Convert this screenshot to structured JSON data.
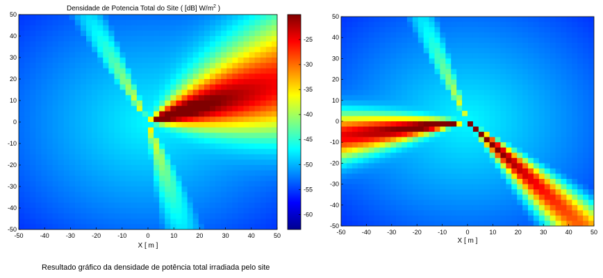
{
  "caption": "Resultado gráfico da densidade de potência total irradiada pelo site",
  "colormap": [
    "#00008f",
    "#0000ff",
    "#0080ff",
    "#00ffff",
    "#80ff80",
    "#ffff00",
    "#ff8000",
    "#ff0000",
    "#800000"
  ],
  "chart_data": [
    {
      "type": "heatmap",
      "title": "Densidade de Potencia Total do Site ( [dB] W/m",
      "title_sup": "2",
      "title_end": " )",
      "xlabel": "X [ m ]",
      "ylabel": "",
      "xlim": [
        -50,
        50
      ],
      "ylim": [
        -50,
        50
      ],
      "xticks": [
        "-50",
        "-40",
        "-30",
        "-20",
        "-10",
        "0",
        "10",
        "20",
        "30",
        "40",
        "50"
      ],
      "yticks": [
        "50",
        "40",
        "30",
        "20",
        "10",
        "0",
        "-10",
        "-20",
        "-30",
        "-40",
        "-50"
      ],
      "colorbar": {
        "ticks": [
          "-25",
          "-30",
          "-35",
          "-40",
          "-45",
          "-50",
          "-55",
          "-60"
        ],
        "range": [
          -63,
          -20
        ]
      },
      "source": {
        "x": 0,
        "y": 0
      },
      "beams": [
        {
          "azimuth_deg": 20,
          "width_deg": 40,
          "peak_db": -21
        },
        {
          "azimuth_deg": 115,
          "width_deg": 24,
          "peak_db": -44
        },
        {
          "azimuth_deg": -75,
          "width_deg": 30,
          "peak_db": -44
        }
      ],
      "background_db": -57
    },
    {
      "type": "heatmap",
      "title": "",
      "xlabel": "X [ m ]",
      "ylabel": "",
      "xlim": [
        -50,
        50
      ],
      "ylim": [
        -50,
        50
      ],
      "xticks": [
        "-50",
        "-40",
        "-30",
        "-20",
        "-10",
        "0",
        "10",
        "20",
        "30",
        "40",
        "50"
      ],
      "yticks": [
        "50",
        "40",
        "30",
        "20",
        "10",
        "0",
        "-10",
        "-20",
        "-30",
        "-40",
        "-50"
      ],
      "source": {
        "x": 0,
        "y": 0
      },
      "beams": [
        {
          "azimuth_deg": 188,
          "width_deg": 18,
          "peak_db": -21
        },
        {
          "azimuth_deg": -48,
          "width_deg": 14,
          "peak_db": -23
        },
        {
          "azimuth_deg": 110,
          "width_deg": 22,
          "peak_db": -44
        }
      ],
      "background_db": -54
    }
  ]
}
